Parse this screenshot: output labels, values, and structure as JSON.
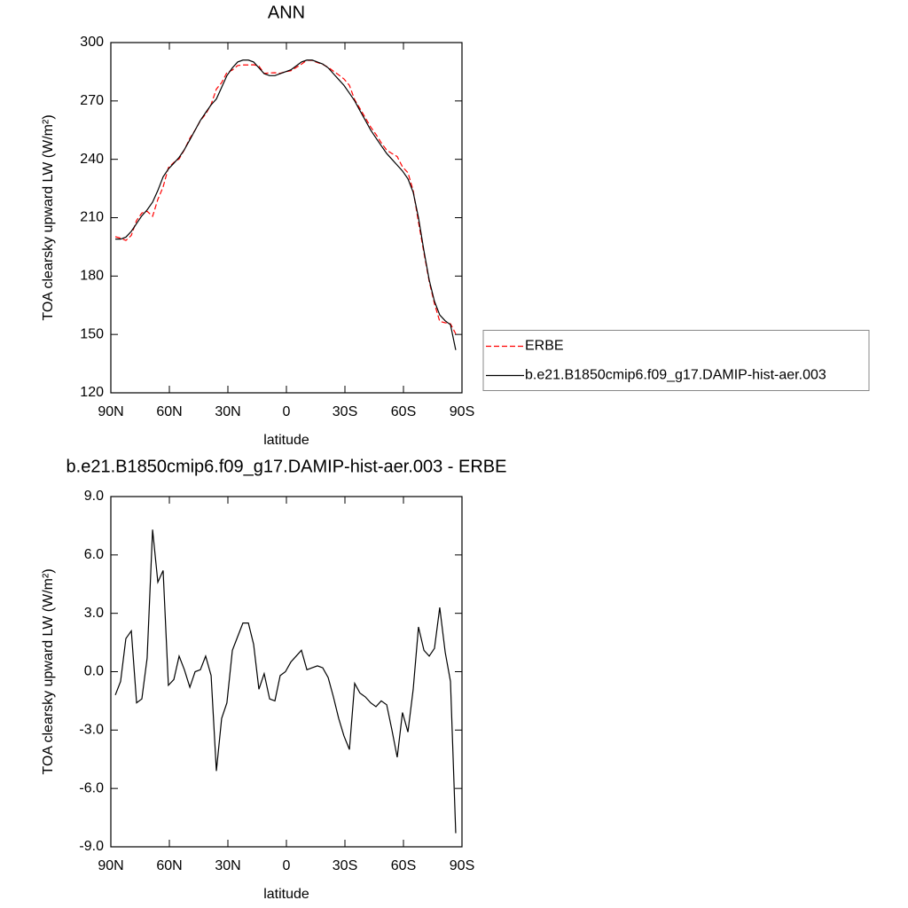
{
  "chart_data": [
    {
      "type": "line",
      "title": "ANN",
      "xlabel": "latitude",
      "ylabel": "TOA clearsky upward LW (W/m²)",
      "xlim": [
        90,
        -90
      ],
      "xticks": [
        {
          "value": 90,
          "label": "90N"
        },
        {
          "value": 60,
          "label": "60N"
        },
        {
          "value": 30,
          "label": "30N"
        },
        0,
        {
          "value": -30,
          "label": "30S"
        },
        {
          "value": -60,
          "label": "60S"
        },
        {
          "value": -90,
          "label": "90S"
        }
      ],
      "ylim": [
        120,
        300
      ],
      "yticks": [
        120,
        150,
        180,
        210,
        240,
        270,
        300
      ],
      "legend": "right",
      "x": [
        87.7,
        85.0,
        82.3,
        79.5,
        76.8,
        74.1,
        71.4,
        68.6,
        65.9,
        63.2,
        60.5,
        57.7,
        55.0,
        52.3,
        49.5,
        46.8,
        44.1,
        41.4,
        38.6,
        35.9,
        33.2,
        30.5,
        27.7,
        25.0,
        22.3,
        19.5,
        16.8,
        14.1,
        11.4,
        8.6,
        5.9,
        3.2,
        0.5,
        -2.3,
        -5.0,
        -7.7,
        -10.5,
        -13.2,
        -15.9,
        -18.6,
        -21.4,
        -24.1,
        -26.8,
        -29.5,
        -32.3,
        -35.0,
        -37.7,
        -40.5,
        -43.2,
        -45.9,
        -48.6,
        -51.4,
        -54.1,
        -56.8,
        -59.5,
        -62.3,
        -65.0,
        -67.7,
        -70.5,
        -73.2,
        -75.9,
        -78.6,
        -81.4,
        -84.1,
        -86.8
      ],
      "series": [
        {
          "name": "ERBE",
          "color": "#ff0000",
          "dash": "dashed",
          "values": [
            200.2,
            199.5,
            198.3,
            200.9,
            208.6,
            212.4,
            213.3,
            210.7,
            219.4,
            225.8,
            235.7,
            238.4,
            240.2,
            244.9,
            250.8,
            255,
            259.9,
            263.2,
            268.2,
            276.1,
            279.4,
            284.6,
            285.9,
            288.2,
            288.5,
            288.5,
            288.6,
            287.9,
            284.1,
            284.4,
            284.5,
            284.2,
            285,
            285.5,
            287.2,
            288.9,
            290.9,
            290.8,
            289.7,
            288.8,
            287.3,
            285.3,
            283.4,
            281.3,
            278,
            270.6,
            266.1,
            261.3,
            256.6,
            252.8,
            248.5,
            244.7,
            243,
            241.4,
            236.1,
            233.1,
            223.9,
            207.7,
            191.9,
            177.2,
            165.8,
            156.7,
            156,
            155.5,
            150.3
          ]
        },
        {
          "name": "b.e21.B1850cmip6.f09_g17.DAMIP-hist-aer.003",
          "color": "#000000",
          "dash": "solid",
          "values": [
            199,
            199,
            200,
            203,
            207,
            211,
            214,
            218,
            224,
            231,
            235,
            238,
            241,
            245,
            250,
            255,
            260,
            264,
            268,
            271,
            277,
            283,
            287,
            290,
            291,
            291,
            290,
            287,
            284,
            283,
            283,
            284,
            285,
            286,
            288,
            290,
            291,
            291,
            290,
            289,
            287,
            284,
            281,
            278,
            274,
            270,
            265,
            260,
            255,
            251,
            247,
            243,
            240,
            237,
            234,
            230,
            223,
            210,
            193,
            178,
            167,
            160,
            157,
            155,
            142
          ]
        }
      ]
    },
    {
      "type": "line",
      "title": "b.e21.B1850cmip6.f09_g17.DAMIP-hist-aer.003 - ERBE",
      "xlabel": "latitude",
      "ylabel": "TOA clearsky upward LW (W/m²)",
      "xlim": [
        90,
        -90
      ],
      "xticks": [
        {
          "value": 90,
          "label": "90N"
        },
        {
          "value": 60,
          "label": "60N"
        },
        {
          "value": 30,
          "label": "30N"
        },
        0,
        {
          "value": -30,
          "label": "30S"
        },
        {
          "value": -60,
          "label": "60S"
        },
        {
          "value": -90,
          "label": "90S"
        }
      ],
      "ylim": [
        -9,
        9
      ],
      "yticks": [
        {
          "value": -9,
          "label": "-9.0"
        },
        {
          "value": -6,
          "label": "-6.0"
        },
        {
          "value": -3,
          "label": "-3.0"
        },
        {
          "value": 0,
          "label": "0.0"
        },
        {
          "value": 3,
          "label": "3.0"
        },
        {
          "value": 6,
          "label": "6.0"
        },
        {
          "value": 9,
          "label": "9.0"
        }
      ],
      "x": [
        87.7,
        85.0,
        82.3,
        79.5,
        76.8,
        74.1,
        71.4,
        68.6,
        65.9,
        63.2,
        60.5,
        57.7,
        55.0,
        52.3,
        49.5,
        46.8,
        44.1,
        41.4,
        38.6,
        35.9,
        33.2,
        30.5,
        27.7,
        25.0,
        22.3,
        19.5,
        16.8,
        14.1,
        11.4,
        8.6,
        5.9,
        3.2,
        0.5,
        -2.3,
        -5.0,
        -7.7,
        -10.5,
        -13.2,
        -15.9,
        -18.6,
        -21.4,
        -24.1,
        -26.8,
        -29.5,
        -32.3,
        -35.0,
        -37.7,
        -40.5,
        -43.2,
        -45.9,
        -48.6,
        -51.4,
        -54.1,
        -56.8,
        -59.5,
        -62.3,
        -65.0,
        -67.7,
        -70.5,
        -73.2,
        -75.9,
        -78.6,
        -81.4,
        -84.1,
        -86.8
      ],
      "series": [
        {
          "color": "#000000",
          "dash": "solid",
          "values": [
            -1.2,
            -0.5,
            1.7,
            2.1,
            -1.6,
            -1.4,
            0.7,
            7.3,
            4.6,
            5.2,
            -0.7,
            -0.4,
            0.8,
            0.1,
            -0.8,
            0.0,
            0.1,
            0.8,
            -0.2,
            -5.1,
            -2.4,
            -1.6,
            1.1,
            1.8,
            2.5,
            2.5,
            1.4,
            -0.9,
            -0.1,
            -1.4,
            -1.5,
            -0.2,
            0.0,
            0.5,
            0.8,
            1.1,
            0.1,
            0.2,
            0.3,
            0.2,
            -0.3,
            -1.3,
            -2.4,
            -3.3,
            -4.0,
            -0.6,
            -1.1,
            -1.3,
            -1.6,
            -1.8,
            -1.5,
            -1.7,
            -3.0,
            -4.4,
            -2.1,
            -3.1,
            -0.9,
            2.3,
            1.1,
            0.8,
            1.2,
            3.3,
            1.0,
            -0.5,
            -8.3
          ]
        }
      ]
    }
  ]
}
